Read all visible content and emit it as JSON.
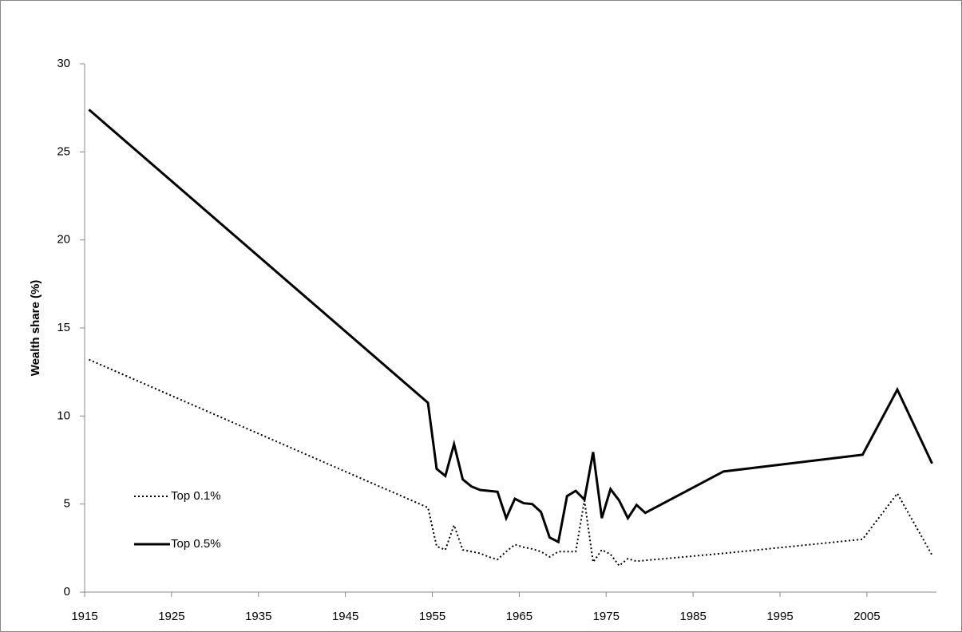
{
  "chart_data": {
    "type": "line",
    "y_label": "Wealth share (%)",
    "x": [
      1915.5,
      1954.5,
      1955.5,
      1956.5,
      1957.5,
      1958.5,
      1959.5,
      1960.5,
      1961.5,
      1962.5,
      1963.5,
      1964.5,
      1965.5,
      1966.5,
      1967.5,
      1968.5,
      1969.5,
      1970.5,
      1971.5,
      1972.5,
      1973.5,
      1974.5,
      1975.5,
      1976.5,
      1977.5,
      1978.5,
      1979.5,
      1988.5,
      2004.5,
      2008.5,
      2012.5
    ],
    "series": [
      {
        "name": "Top 0.1%",
        "color": "#000000",
        "style": "dotted",
        "values": [
          13.2,
          4.8,
          2.6,
          2.4,
          3.8,
          2.4,
          2.3,
          2.2,
          2.0,
          1.85,
          2.3,
          2.7,
          2.55,
          2.45,
          2.3,
          2.0,
          2.3,
          2.3,
          2.3,
          5.2,
          1.7,
          2.4,
          2.15,
          1.5,
          1.9,
          1.75,
          1.8,
          2.2,
          3.0,
          5.6,
          2.1
        ]
      },
      {
        "name": "Top 0.5%",
        "color": "#000000",
        "style": "solid",
        "values": [
          27.4,
          10.75,
          7.0,
          6.6,
          8.4,
          6.4,
          6.0,
          5.8,
          5.75,
          5.7,
          4.2,
          5.3,
          5.05,
          5.0,
          4.55,
          3.1,
          2.85,
          5.45,
          5.75,
          5.25,
          7.95,
          4.2,
          5.85,
          5.2,
          4.2,
          4.95,
          4.5,
          6.85,
          7.8,
          11.5,
          7.3
        ]
      }
    ],
    "xlim": [
      1915,
      2013
    ],
    "xticks": [
      1915,
      1925,
      1935,
      1945,
      1955,
      1965,
      1975,
      1985,
      1995,
      2005
    ],
    "ylim": [
      0,
      30
    ],
    "yticks": [
      0,
      5,
      10,
      15,
      20,
      25,
      30
    ],
    "grid": false,
    "legend": "lower left"
  }
}
